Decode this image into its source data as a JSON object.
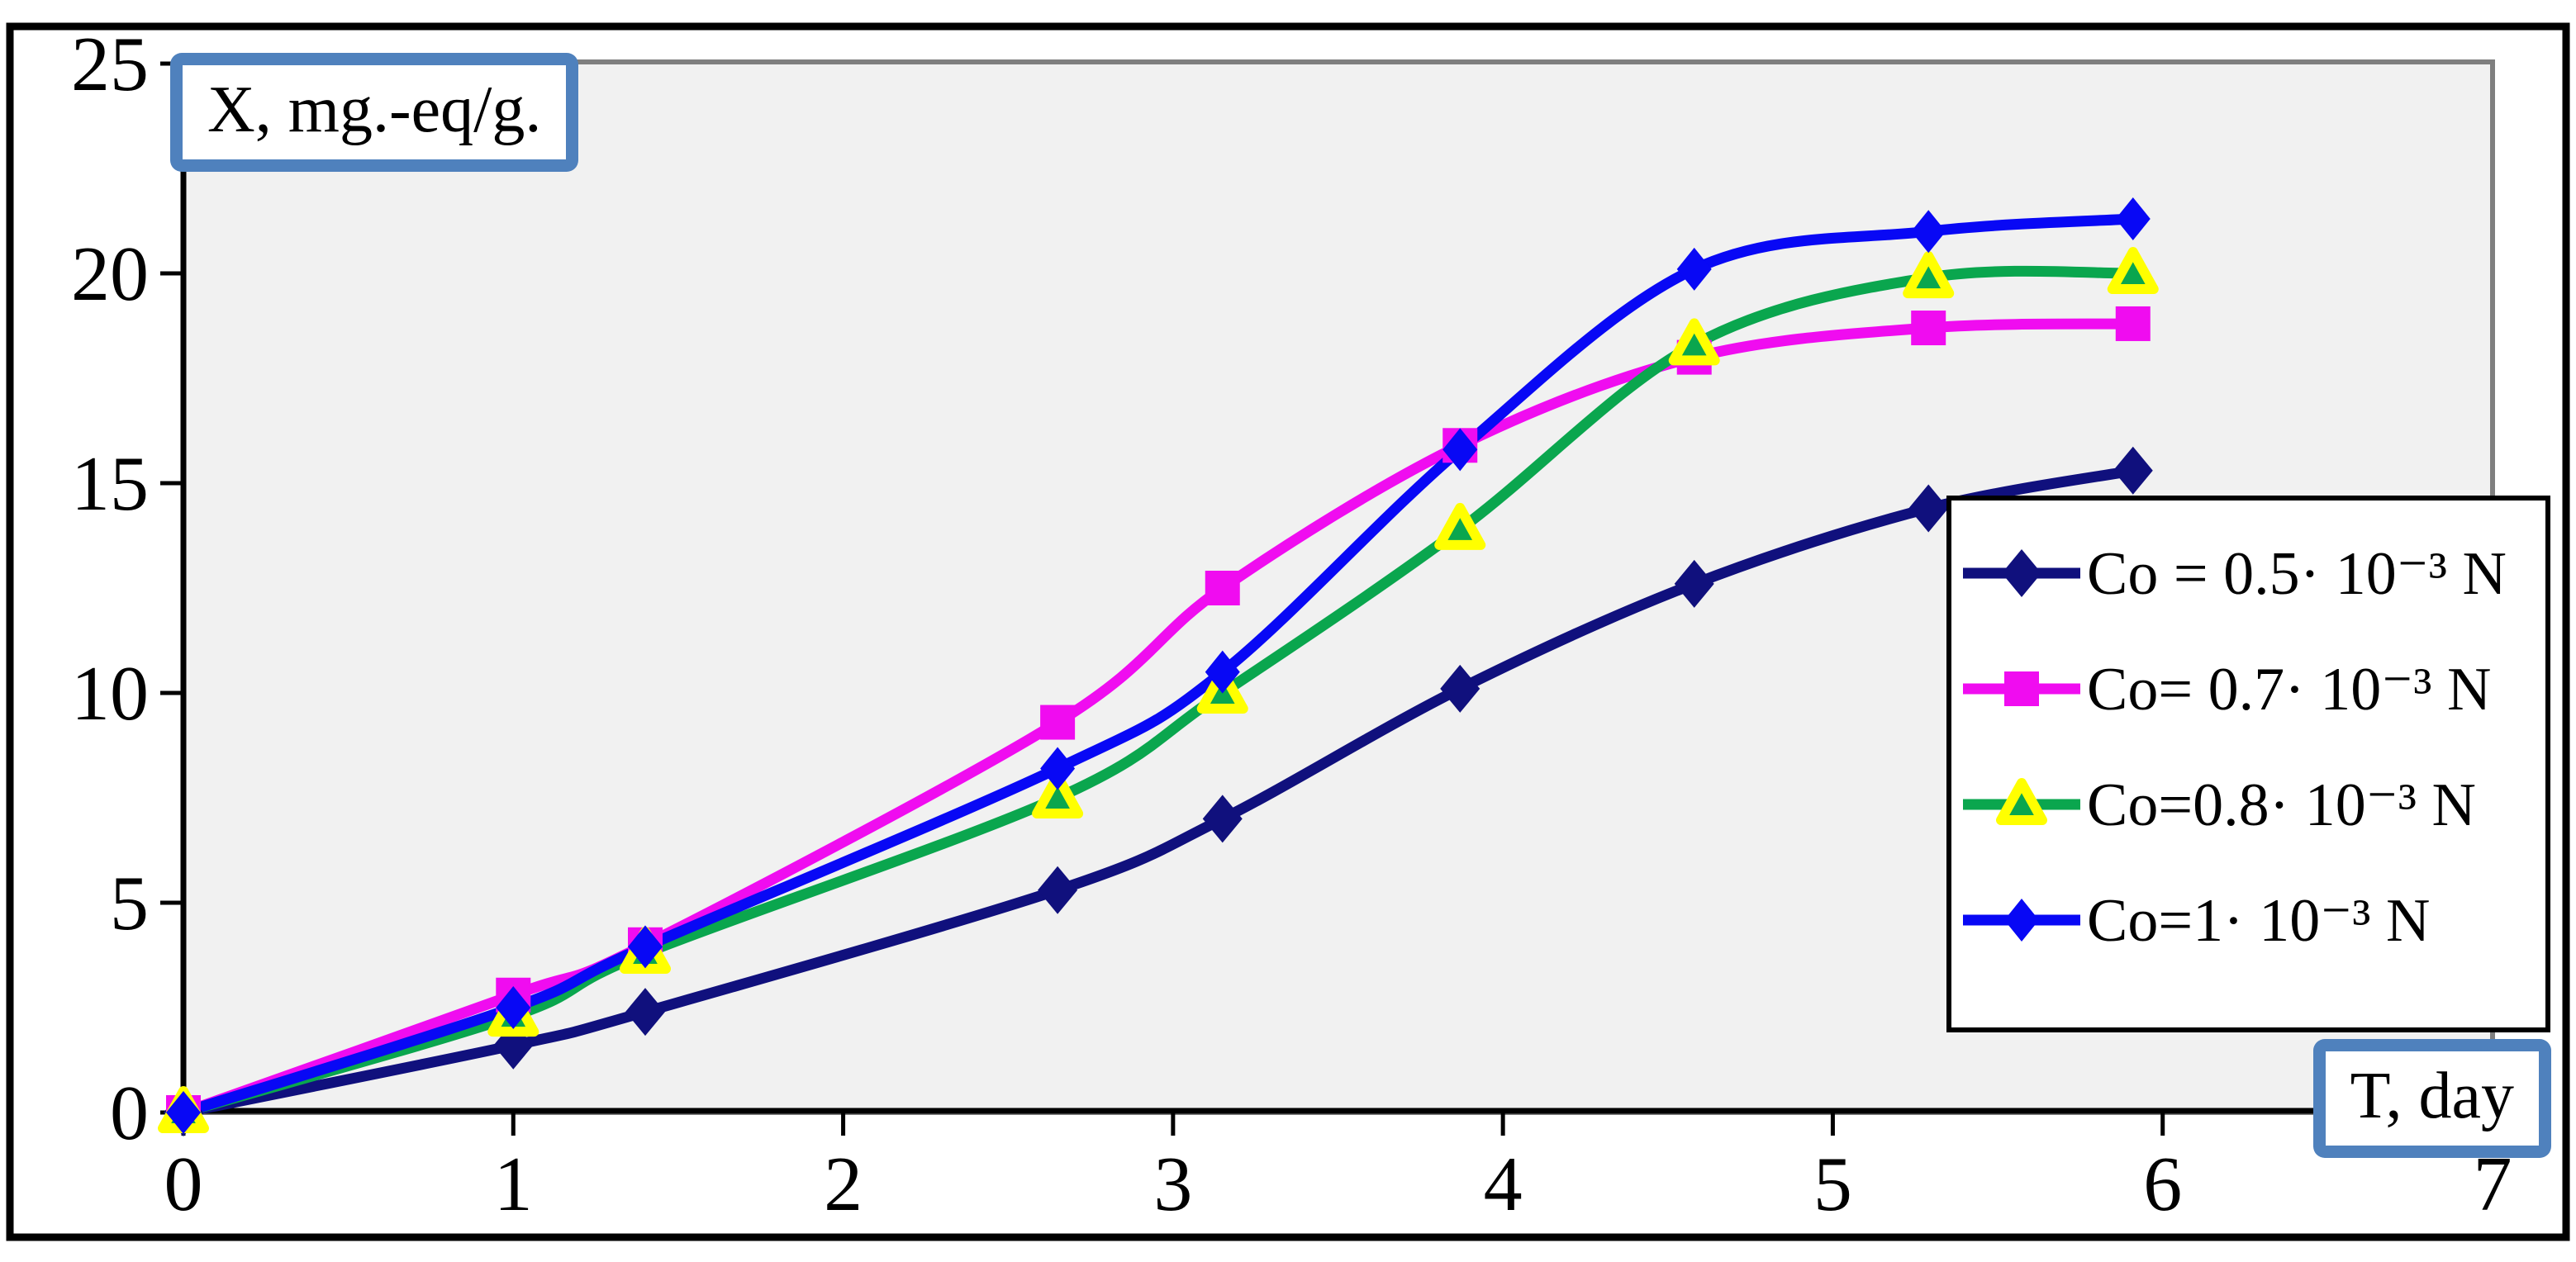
{
  "chart_data": {
    "type": "line",
    "title": "",
    "xlabel": "T, day",
    "ylabel": "X, mg.-eq/g.",
    "xlim": [
      0,
      7
    ],
    "ylim": [
      0,
      25
    ],
    "x_ticks": [
      0,
      1,
      2,
      3,
      4,
      5,
      6,
      7
    ],
    "y_ticks": [
      0,
      5,
      10,
      15,
      20,
      25
    ],
    "grid": false,
    "smooth_lines": true,
    "legend_position": "inside-right",
    "plot_background": "#F1F1F1",
    "plot_border_color": "#7F7F7F",
    "axis_color": "#000000",
    "axis_title_box_border": "#4F81BD",
    "x": [
      0,
      1,
      1.4,
      2.65,
      3.15,
      3.87,
      4.58,
      5.29,
      5.91
    ],
    "series": [
      {
        "name": "Co = 0.5· 10⁻³ N",
        "marker": "diamond",
        "color": "#10107D",
        "marker_color": "#10107D",
        "values": [
          0,
          1.6,
          2.4,
          5.3,
          7.0,
          10.1,
          12.6,
          14.4,
          15.3
        ]
      },
      {
        "name": "Co= 0.7· 10⁻³ N",
        "marker": "square",
        "color": "#F00CF0",
        "marker_color": "#F00CF0",
        "values": [
          0,
          2.8,
          4.0,
          9.3,
          12.5,
          15.9,
          18.0,
          18.7,
          18.8
        ]
      },
      {
        "name": "Co=0.8· 10⁻³ N",
        "marker": "triangle",
        "color": "#0AA64E",
        "marker_color": "#0AA64E",
        "marker_border": "#FFFF00",
        "values": [
          0,
          2.3,
          3.8,
          7.5,
          10.0,
          13.9,
          18.3,
          19.9,
          20.0
        ]
      },
      {
        "name": "Co=1· 10⁻³ N",
        "marker": "diamond",
        "color": "#0808F5",
        "marker_color": "#0808F5",
        "values": [
          0,
          2.5,
          3.95,
          8.2,
          10.5,
          15.8,
          20.1,
          21.0,
          21.3
        ]
      }
    ]
  }
}
